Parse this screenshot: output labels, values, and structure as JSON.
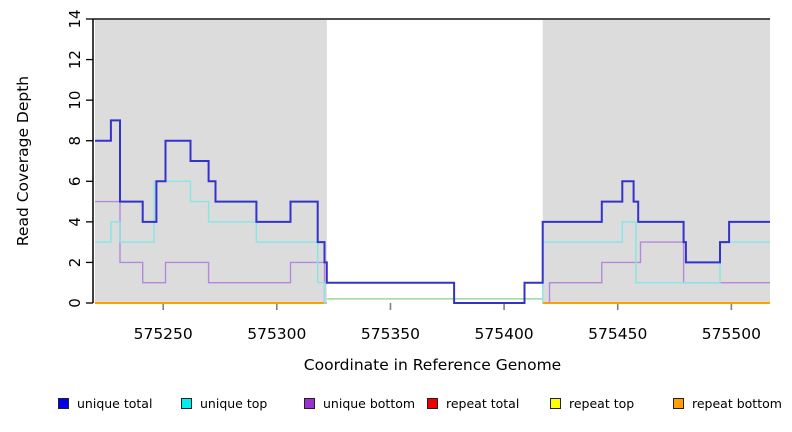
{
  "figure": {
    "background": "#ffffff",
    "shaded_region_color": "#dcdcdc",
    "top_border_color": "#4d4d4d",
    "axis_color": "#000000",
    "x_tick_color": "#808080"
  },
  "chart_data": {
    "type": "line",
    "subtype": "step-coverage",
    "title": "",
    "xlabel": "Coordinate in Reference Genome",
    "ylabel": "Read Coverage Depth",
    "xlim": [
      575220,
      575517
    ],
    "ylim": [
      0,
      14
    ],
    "x_ticks": [
      575250,
      575300,
      575350,
      575400,
      575450,
      575500
    ],
    "y_ticks": [
      0,
      2,
      4,
      6,
      8,
      10,
      12,
      14
    ],
    "grid": false,
    "legend_position": "bottom",
    "shaded_regions": [
      [
        575220,
        575322
      ],
      [
        575417,
        575517
      ]
    ],
    "series": [
      {
        "name": "repeat total",
        "color": "#dd2222",
        "width": 1.5,
        "in_legend": true,
        "subpaths": [
          [
            [
              575220,
              0
            ],
            [
              575322,
              0
            ]
          ],
          [
            [
              575417,
              0
            ],
            [
              575517,
              0
            ]
          ]
        ]
      },
      {
        "name": "repeat top",
        "color": "#eeee00",
        "width": 1.5,
        "in_legend": true,
        "subpaths": [
          [
            [
              575220,
              0
            ],
            [
              575322,
              0
            ]
          ],
          [
            [
              575417,
              0
            ],
            [
              575517,
              0
            ]
          ]
        ]
      },
      {
        "name": "repeat bottom",
        "color": "#ff9f00",
        "width": 2,
        "in_legend": true,
        "subpaths": [
          [
            [
              575220,
              0
            ],
            [
              575322,
              0
            ]
          ],
          [
            [
              575417,
              0
            ],
            [
              575517,
              0
            ]
          ]
        ]
      },
      {
        "name": "gap baseline",
        "color": "#9cd69c",
        "width": 1.5,
        "in_legend": false,
        "subpaths": [
          [
            [
              575322,
              0.2
            ],
            [
              575417,
              0.2
            ]
          ]
        ]
      },
      {
        "name": "unique bottom",
        "color": "#b388dd",
        "width": 1.4,
        "in_legend": true,
        "subpaths": [
          [
            [
              575220,
              5
            ],
            [
              575231,
              5
            ],
            [
              575231,
              2
            ],
            [
              575241,
              2
            ],
            [
              575241,
              1
            ],
            [
              575251,
              1
            ],
            [
              575251,
              2
            ],
            [
              575270,
              2
            ],
            [
              575270,
              1
            ],
            [
              575306,
              1
            ],
            [
              575306,
              2
            ],
            [
              575321,
              2
            ],
            [
              575321,
              0
            ],
            [
              575322,
              0
            ]
          ],
          [
            [
              575420,
              0
            ],
            [
              575420,
              1
            ],
            [
              575443,
              1
            ],
            [
              575443,
              2
            ],
            [
              575460,
              2
            ],
            [
              575460,
              3
            ],
            [
              575479,
              3
            ],
            [
              575479,
              1
            ],
            [
              575517,
              1
            ]
          ]
        ]
      },
      {
        "name": "unique top",
        "color": "#87e6e6",
        "width": 1.4,
        "in_legend": true,
        "subpaths": [
          [
            [
              575220,
              3
            ],
            [
              575227,
              3
            ],
            [
              575227,
              4
            ],
            [
              575231,
              4
            ],
            [
              575231,
              3
            ],
            [
              575246,
              3
            ],
            [
              575246,
              6
            ],
            [
              575262,
              6
            ],
            [
              575262,
              5
            ],
            [
              575270,
              5
            ],
            [
              575270,
              4
            ],
            [
              575291,
              4
            ],
            [
              575291,
              3
            ],
            [
              575318,
              3
            ],
            [
              575318,
              1
            ],
            [
              575321,
              1
            ],
            [
              575321,
              0
            ],
            [
              575322,
              0
            ]
          ],
          [
            [
              575417,
              0
            ],
            [
              575417,
              3
            ],
            [
              575452,
              3
            ],
            [
              575452,
              4
            ],
            [
              575458,
              4
            ],
            [
              575458,
              1
            ],
            [
              575495,
              1
            ],
            [
              575495,
              3
            ],
            [
              575517,
              3
            ]
          ]
        ]
      },
      {
        "name": "unique total",
        "color": "#3333cc",
        "width": 2,
        "in_legend": true,
        "subpaths": [
          [
            [
              575220,
              8
            ],
            [
              575227,
              8
            ],
            [
              575227,
              9
            ],
            [
              575231,
              9
            ],
            [
              575231,
              5
            ],
            [
              575241,
              5
            ],
            [
              575241,
              4
            ],
            [
              575247,
              4
            ],
            [
              575247,
              6
            ],
            [
              575251,
              6
            ],
            [
              575251,
              8
            ],
            [
              575262,
              8
            ],
            [
              575262,
              7
            ],
            [
              575270,
              7
            ],
            [
              575270,
              6
            ],
            [
              575273,
              6
            ],
            [
              575273,
              5
            ],
            [
              575291,
              5
            ],
            [
              575291,
              4
            ],
            [
              575306,
              4
            ],
            [
              575306,
              5
            ],
            [
              575318,
              5
            ],
            [
              575318,
              3
            ],
            [
              575321,
              3
            ],
            [
              575321,
              2
            ],
            [
              575322,
              2
            ],
            [
              575322,
              1
            ],
            [
              575378,
              1
            ],
            [
              575378,
              0
            ],
            [
              575409,
              0
            ],
            [
              575409,
              1
            ],
            [
              575417,
              1
            ],
            [
              575417,
              4
            ],
            [
              575443,
              4
            ],
            [
              575443,
              5
            ],
            [
              575452,
              5
            ],
            [
              575452,
              6
            ],
            [
              575457,
              6
            ],
            [
              575457,
              5
            ],
            [
              575459,
              5
            ],
            [
              575459,
              4
            ],
            [
              575479,
              4
            ],
            [
              575479,
              3
            ],
            [
              575480,
              3
            ],
            [
              575480,
              2
            ],
            [
              575495,
              2
            ],
            [
              575495,
              3
            ],
            [
              575499,
              3
            ],
            [
              575499,
              4
            ],
            [
              575517,
              4
            ]
          ]
        ]
      }
    ]
  },
  "legend": {
    "items": [
      {
        "label": "unique total",
        "color": "#0000ee"
      },
      {
        "label": "unique top",
        "color": "#00eeee"
      },
      {
        "label": "unique bottom",
        "color": "#9b30d0"
      },
      {
        "label": "repeat total",
        "color": "#ee0000"
      },
      {
        "label": "repeat top",
        "color": "#ffff00"
      },
      {
        "label": "repeat bottom",
        "color": "#ff9f00"
      }
    ]
  }
}
